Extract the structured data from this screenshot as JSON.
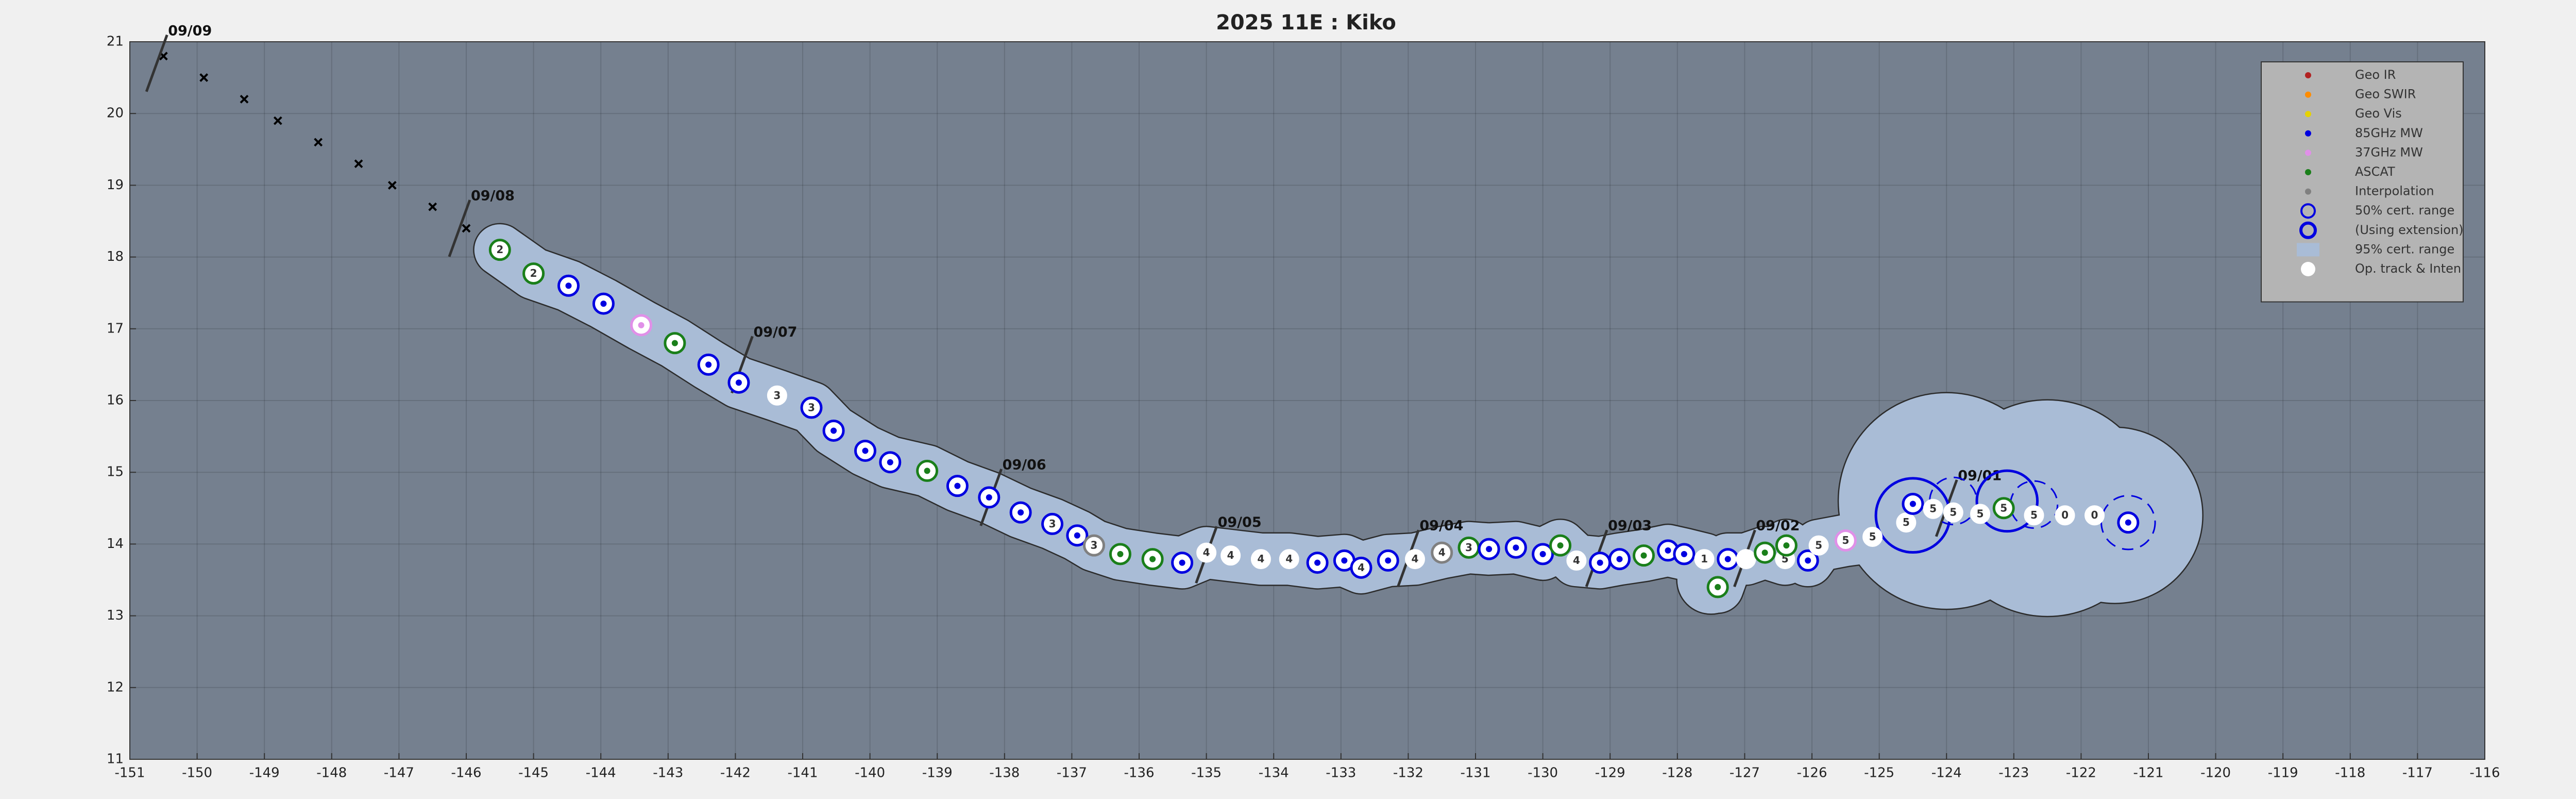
{
  "chart_data": {
    "type": "track",
    "title": "2025  11E :  Kiko",
    "xlim": [
      -151,
      -116
    ],
    "ylim": [
      11,
      21
    ],
    "xticks": [
      -151,
      -150,
      -149,
      -148,
      -147,
      -146,
      -145,
      -144,
      -143,
      -142,
      -141,
      -140,
      -139,
      -138,
      -137,
      -136,
      -135,
      -134,
      -133,
      -132,
      -131,
      -130,
      -129,
      -128,
      -127,
      -126,
      -125,
      -124,
      -123,
      -122,
      -121,
      -120,
      -119,
      -118,
      -117,
      -116
    ],
    "yticks": [
      11,
      12,
      13,
      14,
      15,
      16,
      17,
      18,
      19,
      20,
      21
    ],
    "grid": true,
    "legend": {
      "position": "upper right",
      "entries": [
        {
          "name": "Geo IR",
          "color": "#b22222",
          "marker": "dot"
        },
        {
          "name": "Geo SWIR",
          "color": "#ff8c00",
          "marker": "dot"
        },
        {
          "name": "Geo Vis",
          "color": "#e6d200",
          "marker": "dot"
        },
        {
          "name": "85GHz MW",
          "color": "#0000e0",
          "marker": "dot"
        },
        {
          "name": "37GHz MW",
          "color": "#e090e8",
          "marker": "dot"
        },
        {
          "name": "ASCAT",
          "color": "#1a7f1a",
          "marker": "dot"
        },
        {
          "name": "Interpolation",
          "color": "#808080",
          "marker": "dot"
        },
        {
          "name": "50% cert. range",
          "color": "#0000e0",
          "marker": "ring"
        },
        {
          "name": "(Using extension)",
          "color": "#0000e0",
          "marker": "ring-thick"
        },
        {
          "name": "95% cert. range",
          "color": "#a9bcd6",
          "marker": "patch"
        },
        {
          "name": "Op. track & Inten",
          "color": "#ffffff",
          "marker": "disc"
        }
      ]
    },
    "track": {
      "x": [
        -145.5,
        -145.0,
        -144.48,
        -143.96,
        -143.4,
        -142.9,
        -142.4,
        -141.95,
        -141.38,
        -140.87,
        -140.54,
        -140.07,
        -139.7,
        -139.15,
        -138.7,
        -138.23,
        -137.76,
        -137.29,
        -136.92,
        -136.67,
        -136.28,
        -135.8,
        -135.36,
        -135.0,
        -134.64,
        -134.19,
        -133.77,
        -133.35,
        -132.95,
        -132.7,
        -132.3,
        -131.9,
        -131.5,
        -131.1,
        -130.8,
        -130.4,
        -130.0,
        -129.74,
        -129.5,
        -129.15,
        -128.86,
        -128.5,
        -128.14,
        -127.9,
        -127.6,
        -127.4,
        -127.25,
        -126.98,
        -126.7,
        -126.4,
        -126.38,
        -126.06,
        -125.9,
        -125.5,
        -125.1,
        -124.6,
        -124.5,
        -124.2,
        -123.9,
        -123.5,
        -123.15,
        -122.7,
        -122.24,
        -121.8,
        -121.3
      ],
      "y": [
        18.1,
        17.77,
        17.6,
        17.35,
        17.05,
        16.8,
        16.5,
        16.25,
        16.07,
        15.9,
        15.58,
        15.3,
        15.14,
        15.02,
        14.81,
        14.65,
        14.44,
        14.28,
        14.12,
        13.98,
        13.86,
        13.79,
        13.74,
        13.88,
        13.84,
        13.79,
        13.79,
        13.74,
        13.77,
        13.67,
        13.77,
        13.79,
        13.88,
        13.95,
        13.93,
        13.95,
        13.86,
        13.98,
        13.77,
        13.74,
        13.79,
        13.84,
        13.91,
        13.86,
        13.79,
        13.4,
        13.79,
        13.79,
        13.88,
        13.79,
        13.98,
        13.77,
        13.98,
        14.05,
        14.1,
        14.3,
        14.56,
        14.49,
        14.44,
        14.42,
        14.5,
        14.4,
        14.4,
        14.4,
        14.3
      ],
      "labels": [
        "2",
        "2",
        null,
        null,
        null,
        null,
        null,
        null,
        "3",
        "3",
        null,
        null,
        null,
        null,
        null,
        null,
        null,
        "3",
        null,
        "3",
        null,
        null,
        null,
        "4",
        "4",
        "4",
        "4",
        null,
        null,
        "4",
        null,
        "4",
        "4",
        "3",
        null,
        null,
        null,
        null,
        "4",
        null,
        null,
        null,
        null,
        null,
        "1",
        null,
        null,
        null,
        null,
        "5",
        null,
        null,
        "5",
        "5",
        "5",
        "5",
        null,
        "5",
        "5",
        "5",
        "5",
        "5",
        "0",
        "0",
        null
      ],
      "sources": [
        "ASCAT",
        "ASCAT",
        "85GHz MW",
        "85GHz MW",
        "37GHz MW",
        "ASCAT",
        "85GHz MW",
        "85GHz MW",
        "Op. track & Inten",
        "85GHz MW",
        "85GHz MW",
        "85GHz MW",
        "85GHz MW",
        "ASCAT",
        "85GHz MW",
        "85GHz MW",
        "85GHz MW",
        "85GHz MW",
        "85GHz MW",
        "Interpolation",
        "ASCAT",
        "ASCAT",
        "85GHz MW",
        "Op. track & Inten",
        "Op. track & Inten",
        "Op. track & Inten",
        "Op. track & Inten",
        "85GHz MW",
        "85GHz MW",
        "85GHz MW",
        "85GHz MW",
        "Op. track & Inten",
        "Interpolation",
        "ASCAT",
        "85GHz MW",
        "85GHz MW",
        "85GHz MW",
        "ASCAT",
        "Op. track & Inten",
        "85GHz MW",
        "85GHz MW",
        "ASCAT",
        "85GHz MW",
        "85GHz MW",
        "Op. track & Inten",
        "ASCAT",
        "85GHz MW",
        "Op. track & Inten",
        "ASCAT",
        "Op. track & Inten",
        "ASCAT",
        "85GHz MW",
        "Op. track & Inten",
        "37GHz MW",
        "Op. track & Inten",
        "Op. track & Inten",
        "85GHz MW",
        "Op. track & Inten",
        "Op. track & Inten",
        "Op. track & Inten",
        "ASCAT",
        "Op. track & Inten",
        "Op. track & Inten",
        "Op. track & Inten",
        "85GHz MW"
      ]
    },
    "cert50": [
      {
        "x": -124.5,
        "y": 14.4,
        "r": 0.55,
        "extension": true
      },
      {
        "x": -123.1,
        "y": 14.6,
        "r": 0.45,
        "extension": true
      },
      {
        "x": -123.9,
        "y": 14.6,
        "r": 0.35,
        "extension": false
      },
      {
        "x": -122.7,
        "y": 14.55,
        "r": 0.35,
        "extension": false
      },
      {
        "x": -121.3,
        "y": 14.3,
        "r": 0.4,
        "extension": false
      }
    ],
    "cert95": {
      "half_width": 0.38,
      "circles": [
        {
          "x": -124.0,
          "y": 14.6,
          "r": 1.6
        },
        {
          "x": -122.5,
          "y": 14.5,
          "r": 1.6
        },
        {
          "x": -121.5,
          "y": 14.4,
          "r": 1.3
        },
        {
          "x": -127.5,
          "y": 13.5,
          "r": 0.5
        }
      ]
    },
    "x_markers": {
      "x": [
        -150.5,
        -149.9,
        -149.3,
        -148.8,
        -148.2,
        -147.6,
        -147.1,
        -146.5,
        -146.0
      ],
      "y": [
        20.8,
        20.5,
        20.2,
        19.9,
        19.6,
        19.3,
        19.0,
        18.7,
        18.4
      ]
    },
    "dates": [
      {
        "label": "09/09",
        "x": -150.6,
        "y": 20.7
      },
      {
        "label": "09/08",
        "x": -146.1,
        "y": 18.4
      },
      {
        "label": "09/07",
        "x": -141.9,
        "y": 16.5
      },
      {
        "label": "09/06",
        "x": -138.2,
        "y": 14.65
      },
      {
        "label": "09/05",
        "x": -135.0,
        "y": 13.85
      },
      {
        "label": "09/04",
        "x": -132.0,
        "y": 13.8
      },
      {
        "label": "09/03",
        "x": -129.2,
        "y": 13.8
      },
      {
        "label": "09/02",
        "x": -127.0,
        "y": 13.8
      },
      {
        "label": "09/01",
        "x": -124.0,
        "y": 14.5
      }
    ]
  }
}
